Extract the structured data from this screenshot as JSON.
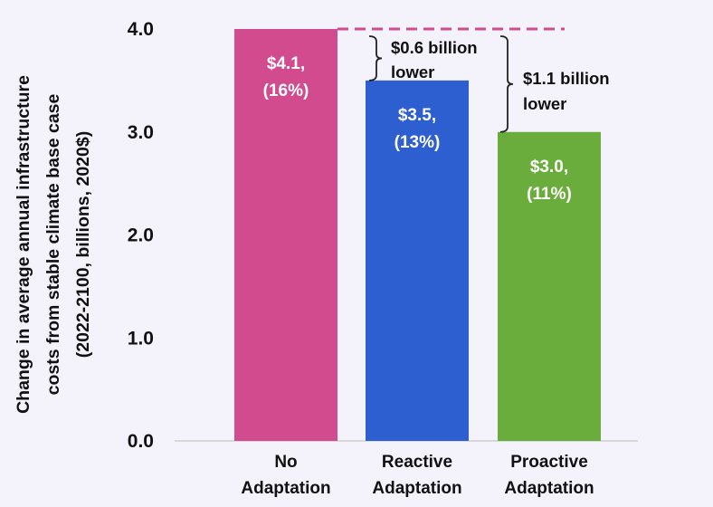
{
  "chart_data": {
    "type": "bar",
    "categories": [
      [
        "No",
        "Adaptation"
      ],
      [
        "Reactive",
        "Adaptation"
      ],
      [
        "Proactive",
        "Adaptation"
      ]
    ],
    "values": [
      4.1,
      3.5,
      3.0
    ],
    "data_labels": [
      [
        "$4.1,",
        "(16%)"
      ],
      [
        "$3.5,",
        "(13%)"
      ],
      [
        "$3.0,",
        "(11%)"
      ]
    ],
    "colors": [
      "#d24b8f",
      "#2e5fd0",
      "#6aad3c"
    ],
    "ylabel_lines": [
      "Change in average annual infrastructure",
      "costs from stable climate base case",
      "(2022-2100, billions, 2020$)"
    ],
    "ylim": [
      0,
      4.0
    ],
    "yticks": [
      "0.0",
      "1.0",
      "2.0",
      "3.0",
      "4.0"
    ],
    "grid": false,
    "reference_line": {
      "value": 4.0,
      "color": "#d24b8f",
      "style": "dashed"
    },
    "annotations": [
      {
        "from_bar": 0,
        "to_bar": 1,
        "lines": [
          "$0.6 billion",
          "lower"
        ]
      },
      {
        "from_bar": 0,
        "to_bar": 2,
        "lines": [
          "$1.1 billion",
          "lower"
        ]
      }
    ]
  }
}
